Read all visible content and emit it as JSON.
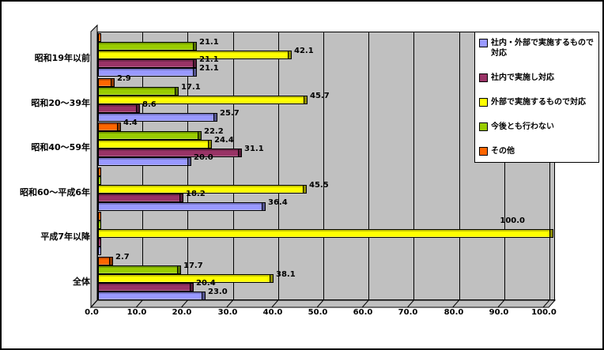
{
  "chart_data": {
    "type": "bar",
    "orientation": "horizontal",
    "style": "3d",
    "title": "",
    "xlabel": "",
    "ylabel": "",
    "categories": [
      "昭和19年以前",
      "昭和20～39年",
      "昭和40～59年",
      "昭和60～平成6年",
      "平成7年以降",
      "全体"
    ],
    "series": [
      {
        "name": "社内・外部で実施するもので対応",
        "color": "#9999FF",
        "values": [
          21.1,
          25.7,
          20.0,
          36.4,
          0,
          23.0
        ]
      },
      {
        "name": "社内で実施し対応",
        "color": "#993366",
        "values": [
          21.1,
          8.6,
          31.1,
          18.2,
          0,
          20.4
        ]
      },
      {
        "name": "外部で実施するもので対応",
        "color": "#FFFF00",
        "values": [
          42.1,
          45.7,
          24.4,
          45.5,
          100.0,
          38.1
        ]
      },
      {
        "name": "今後とも行わない",
        "color": "#99CC00",
        "values": [
          21.1,
          17.1,
          22.2,
          0,
          0,
          17.7
        ]
      },
      {
        "name": "その他",
        "color": "#FF6600",
        "values": [
          0,
          2.9,
          4.4,
          0,
          0,
          2.7
        ]
      }
    ],
    "xlim": [
      0,
      100
    ],
    "x_ticks": [
      "0.0",
      "10.0",
      "20.0",
      "30.0",
      "40.0",
      "50.0",
      "60.0",
      "70.0",
      "80.0",
      "90.0",
      "100.0"
    ],
    "grid": true,
    "legend_position": "upper-right",
    "plot_background": "#C0C0C0",
    "gridline_color": "#000000"
  }
}
